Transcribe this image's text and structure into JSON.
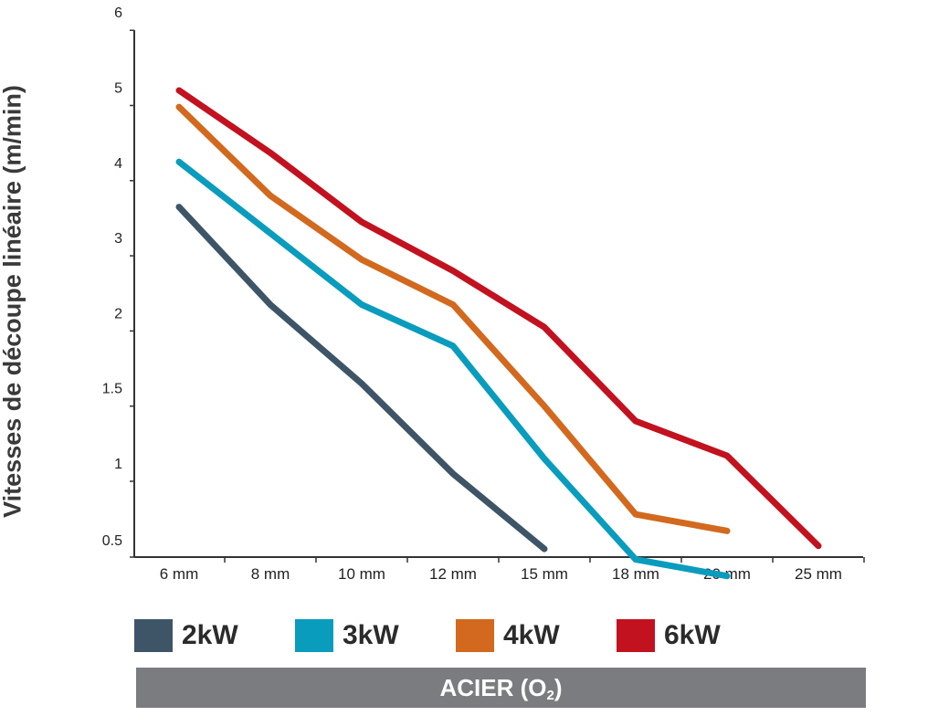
{
  "chart_data": {
    "type": "line",
    "title": "",
    "ylabel": "Vitesses de découpe linéaire (m/min)",
    "xlabel_prefix": "ACIER (O",
    "xlabel_sub": "2",
    "xlabel_suffix": ")",
    "categories": [
      "6 mm",
      "8 mm",
      "10 mm",
      "12 mm",
      "15 mm",
      "18 mm",
      "20 mm",
      "25 mm"
    ],
    "yticks": [
      "0.5",
      "1",
      "1.5",
      "2",
      "3",
      "4",
      "5",
      "6"
    ],
    "series": [
      {
        "name": "2kW",
        "color": "#3e5567",
        "values": [
          3.65,
          2.35,
          1.65,
          1.05,
          0.55,
          null,
          null,
          null
        ]
      },
      {
        "name": "3kW",
        "color": "#0a9cbd",
        "values": [
          4.25,
          3.3,
          2.35,
          1.9,
          1.15,
          0.48,
          0.37,
          null
        ]
      },
      {
        "name": "4kW",
        "color": "#d2691e",
        "values": [
          4.98,
          3.8,
          2.95,
          2.35,
          1.5,
          0.78,
          0.67,
          null
        ]
      },
      {
        "name": "6kW",
        "color": "#c2121f",
        "values": [
          5.2,
          4.37,
          3.45,
          2.8,
          2.05,
          1.4,
          1.17,
          0.57
        ]
      }
    ],
    "grid": false,
    "legend_position": "bottom"
  }
}
